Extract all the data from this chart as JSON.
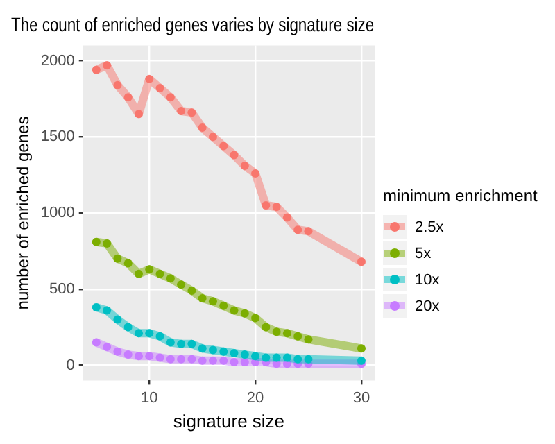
{
  "chart_data": {
    "type": "line",
    "title": "The count of enriched genes varies by signature size",
    "xlabel": "signature size",
    "ylabel": "number of enriched genes",
    "legend_title": "minimum enrichment",
    "x": [
      5,
      6,
      7,
      8,
      9,
      10,
      11,
      12,
      13,
      14,
      15,
      16,
      17,
      18,
      19,
      20,
      21,
      22,
      23,
      24,
      25,
      30
    ],
    "series": [
      {
        "name": "2.5x",
        "color": "#f8766d",
        "values": [
          1940,
          1970,
          1840,
          1760,
          1650,
          1880,
          1820,
          1760,
          1670,
          1660,
          1560,
          1500,
          1440,
          1380,
          1310,
          1260,
          1050,
          1040,
          970,
          890,
          880,
          680
        ]
      },
      {
        "name": "5x",
        "color": "#7cae00",
        "values": [
          810,
          800,
          700,
          670,
          600,
          630,
          600,
          570,
          530,
          490,
          440,
          420,
          390,
          360,
          340,
          310,
          250,
          220,
          210,
          190,
          170,
          110
        ]
      },
      {
        "name": "10x",
        "color": "#00bfc4",
        "values": [
          380,
          360,
          300,
          250,
          210,
          210,
          190,
          150,
          140,
          140,
          110,
          100,
          90,
          80,
          70,
          60,
          50,
          50,
          50,
          40,
          40,
          30
        ]
      },
      {
        "name": "20x",
        "color": "#c77cff",
        "values": [
          150,
          120,
          90,
          70,
          60,
          60,
          50,
          40,
          40,
          40,
          30,
          30,
          30,
          20,
          20,
          20,
          20,
          10,
          10,
          10,
          10,
          10
        ]
      }
    ],
    "xlim": [
      3.75,
      31.25
    ],
    "xticks": [
      10,
      20,
      30
    ],
    "ylim": [
      -100,
      2100
    ],
    "yticks": [
      0,
      500,
      {
        "value": 1000,
        "label": "1000"
      },
      {
        "value": 1500,
        "label": "1500"
      },
      {
        "value": 2000,
        "label": "2000"
      }
    ],
    "grid": true,
    "legend": "right",
    "marker": "circle",
    "line_style": "solid"
  }
}
